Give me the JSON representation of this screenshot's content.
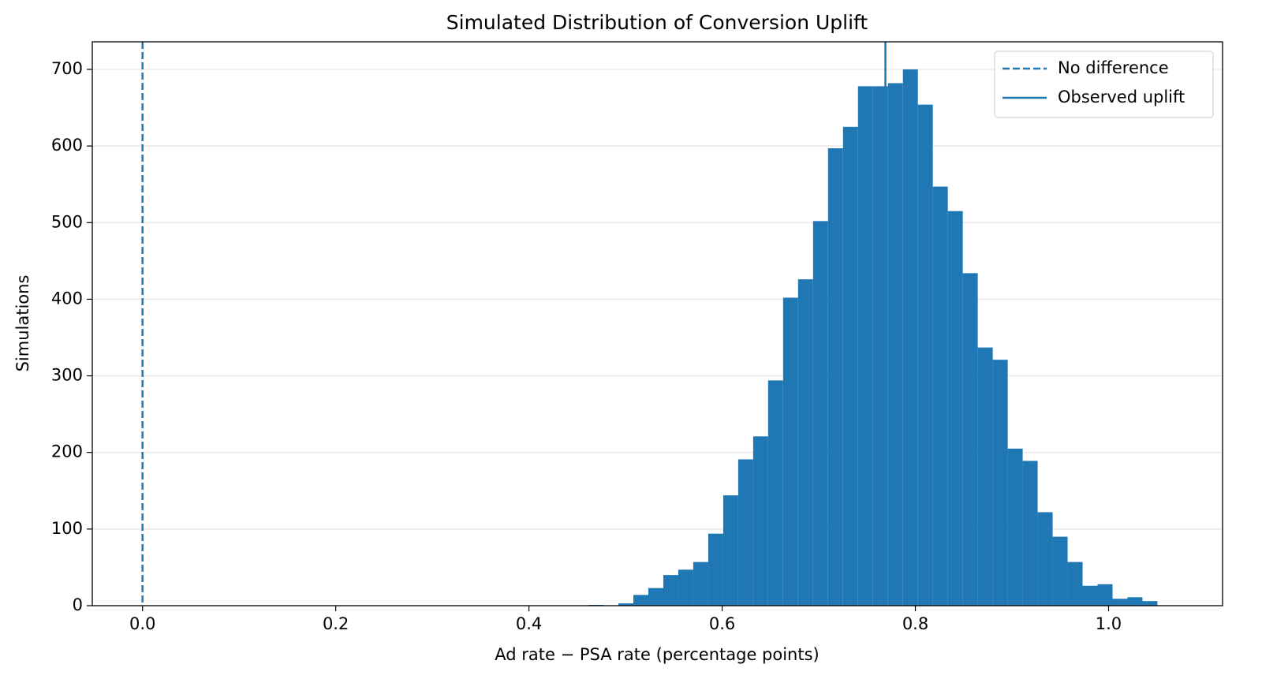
{
  "chart_data": {
    "type": "histogram",
    "title": "Simulated Distribution of Conversion Uplift",
    "x_label": "Ad rate − PSA rate (percentage points)",
    "y_label": "Simulations",
    "color": "#1f77b4",
    "bins": [
      0.4616,
      0.4771,
      0.4926,
      0.5081,
      0.5236,
      0.5391,
      0.5546,
      0.5701,
      0.5856,
      0.6011,
      0.6166,
      0.6321,
      0.6476,
      0.6631,
      0.6786,
      0.6941,
      0.7096,
      0.7251,
      0.7406,
      0.7561,
      0.7716,
      0.7871,
      0.8026,
      0.8181,
      0.8336,
      0.8491,
      0.8646,
      0.8801,
      0.8956,
      0.9111,
      0.9266,
      0.9421,
      0.9576,
      0.9731,
      0.9886,
      1.0041,
      1.0196,
      1.0351,
      1.0506
    ],
    "values": [
      1,
      0,
      3,
      14,
      23,
      40,
      47,
      57,
      94,
      144,
      191,
      221,
      294,
      402,
      426,
      502,
      597,
      625,
      678,
      678,
      682,
      700,
      654,
      547,
      515,
      434,
      337,
      321,
      205,
      189,
      122,
      90,
      57,
      26,
      28,
      9,
      11,
      6
    ],
    "xlim": [
      -0.052,
      1.118
    ],
    "ylim": [
      0,
      736
    ],
    "xticks": [
      {
        "value": 0,
        "label": "0.0"
      },
      {
        "value": 0.2,
        "label": "0.2"
      },
      {
        "value": 0.4,
        "label": "0.4"
      },
      {
        "value": 0.6,
        "label": "0.6"
      },
      {
        "value": 0.8,
        "label": "0.8"
      },
      {
        "value": 1,
        "label": "1.0"
      }
    ],
    "yticks": [
      0,
      100,
      200,
      300,
      400,
      500,
      600,
      700
    ],
    "grid": true,
    "legend": "upper right",
    "reference_lines": [
      {
        "name": "No difference",
        "x": 0,
        "style": "dashed",
        "color": "#1f77b4"
      },
      {
        "name": "Observed uplift",
        "x": 0.769,
        "style": "solid",
        "color": "#1f77b4"
      }
    ]
  }
}
